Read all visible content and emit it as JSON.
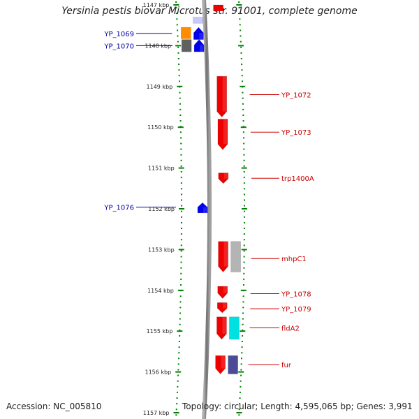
{
  "title": "Yersinia pestis biovar Microtus str. 91001, complete genome",
  "footer": {
    "accession": "Accession: NC_005810",
    "topology": "Topology: circular; Length: 4,595,065 bp; Genes: 3,991"
  },
  "colors": {
    "backbone": "#808080",
    "forward_gene": "#ee0000",
    "reverse_gene": "#0000ee",
    "label_forward": "#cc0000",
    "label_reverse": "#0000aa",
    "tick": "#008000"
  },
  "ticks": [
    {
      "kbp": 1147,
      "label": "1147 kbp"
    },
    {
      "kbp": 1148,
      "label": "1148 kbp"
    },
    {
      "kbp": 1149,
      "label": "1149 kbp"
    },
    {
      "kbp": 1150,
      "label": "1150 kbp"
    },
    {
      "kbp": 1151,
      "label": "1151 kbp"
    },
    {
      "kbp": 1152,
      "label": "1152 kbp"
    },
    {
      "kbp": 1153,
      "label": "1153 kbp"
    },
    {
      "kbp": 1154,
      "label": "1154 kbp"
    },
    {
      "kbp": 1155,
      "label": "1155 kbp"
    },
    {
      "kbp": 1156,
      "label": "1156 kbp"
    },
    {
      "kbp": 1157,
      "label": "1157 kbp"
    }
  ],
  "features": [
    {
      "track": "rev-outer",
      "start_kbp": 1147.55,
      "end_kbp": 1147.83,
      "color": "#ff8c00",
      "shape": "box"
    },
    {
      "track": "rev-outer",
      "start_kbp": 1147.85,
      "end_kbp": 1148.15,
      "color": "#606060",
      "shape": "box"
    },
    {
      "track": "rev-inner",
      "start_kbp": 1147.55,
      "end_kbp": 1147.85,
      "color": "#0000ee",
      "shape": "arrow"
    },
    {
      "track": "rev-inner",
      "start_kbp": 1147.85,
      "end_kbp": 1148.15,
      "color": "#0000ee",
      "shape": "arrow"
    },
    {
      "track": "rev-inner",
      "start_kbp": 1147.3,
      "end_kbp": 1147.45,
      "color": "#c8c8ff",
      "shape": "box"
    },
    {
      "track": "fwd-inner",
      "start_kbp": 1147.0,
      "end_kbp": 1147.15,
      "color": "#ee0000",
      "shape": "box"
    },
    {
      "track": "fwd-inner",
      "start_kbp": 1148.75,
      "end_kbp": 1149.75,
      "color": "#ee0000",
      "shape": "arrow"
    },
    {
      "track": "fwd-inner",
      "start_kbp": 1149.8,
      "end_kbp": 1150.55,
      "color": "#ee0000",
      "shape": "arrow"
    },
    {
      "track": "fwd-inner",
      "start_kbp": 1151.12,
      "end_kbp": 1151.38,
      "color": "#ee0000",
      "shape": "arrow"
    },
    {
      "track": "rev-inner",
      "start_kbp": 1151.85,
      "end_kbp": 1152.1,
      "color": "#0000ee",
      "shape": "arrow"
    },
    {
      "track": "fwd-inner",
      "start_kbp": 1152.8,
      "end_kbp": 1153.55,
      "color": "#ee0000",
      "shape": "arrow"
    },
    {
      "track": "fwd-outer",
      "start_kbp": 1152.8,
      "end_kbp": 1153.55,
      "color": "#b4b4b4",
      "shape": "box"
    },
    {
      "track": "fwd-inner",
      "start_kbp": 1153.9,
      "end_kbp": 1154.2,
      "color": "#ee0000",
      "shape": "arrow"
    },
    {
      "track": "fwd-inner",
      "start_kbp": 1154.3,
      "end_kbp": 1154.55,
      "color": "#ee0000",
      "shape": "arrow"
    },
    {
      "track": "fwd-inner",
      "start_kbp": 1154.65,
      "end_kbp": 1155.2,
      "color": "#ee0000",
      "shape": "arrow"
    },
    {
      "track": "fwd-outer",
      "start_kbp": 1154.65,
      "end_kbp": 1155.2,
      "color": "#00e0e0",
      "shape": "box"
    },
    {
      "track": "fwd-inner",
      "start_kbp": 1155.6,
      "end_kbp": 1156.05,
      "color": "#ee0000",
      "shape": "arrow"
    },
    {
      "track": "fwd-outer",
      "start_kbp": 1155.6,
      "end_kbp": 1156.05,
      "color": "#4b4b96",
      "shape": "box"
    }
  ],
  "labels": [
    {
      "text": "YP_1069",
      "side": "left",
      "kbp": 1147.7
    },
    {
      "text": "YP_1070",
      "side": "left",
      "kbp": 1148.0
    },
    {
      "text": "YP_1072",
      "side": "right",
      "kbp": 1149.2
    },
    {
      "text": "YP_1073",
      "side": "right",
      "kbp": 1150.12
    },
    {
      "text": "trp1400A",
      "side": "right",
      "kbp": 1151.25
    },
    {
      "text": "YP_1076",
      "side": "left",
      "kbp": 1151.96
    },
    {
      "text": "mhpC1",
      "side": "right",
      "kbp": 1153.22
    },
    {
      "text": "YP_1078",
      "side": "right",
      "kbp": 1154.08
    },
    {
      "text": "YP_1079",
      "side": "right",
      "kbp": 1154.45
    },
    {
      "text": "fldA2",
      "side": "right",
      "kbp": 1154.92
    },
    {
      "text": "fur",
      "side": "right",
      "kbp": 1155.82
    }
  ]
}
